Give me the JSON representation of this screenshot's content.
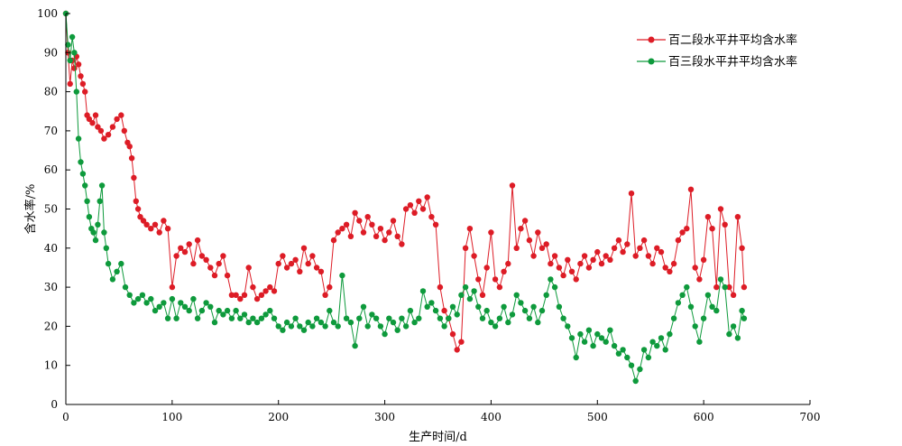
{
  "chart_data": {
    "type": "line",
    "title": "",
    "xlabel": "生产时间/d",
    "ylabel": "含水率/%",
    "xlim": [
      0,
      700
    ],
    "ylim": [
      0,
      100
    ],
    "xticks": [
      0,
      100,
      200,
      300,
      400,
      500,
      600,
      700
    ],
    "yticks": [
      0,
      10,
      20,
      30,
      40,
      50,
      60,
      70,
      80,
      90,
      100
    ],
    "grid": false,
    "legend_position": "top-right",
    "series": [
      {
        "name": "百二段水平井平均含水率",
        "color": "#dd1c26",
        "x": [
          0,
          2,
          4,
          6,
          8,
          10,
          12,
          14,
          16,
          18,
          20,
          22,
          25,
          28,
          30,
          33,
          36,
          40,
          44,
          48,
          52,
          55,
          58,
          60,
          62,
          64,
          66,
          68,
          70,
          73,
          76,
          80,
          84,
          88,
          92,
          96,
          100,
          104,
          108,
          112,
          116,
          120,
          124,
          128,
          132,
          136,
          140,
          144,
          148,
          152,
          156,
          160,
          164,
          168,
          172,
          176,
          180,
          184,
          188,
          192,
          196,
          200,
          204,
          208,
          212,
          216,
          220,
          224,
          228,
          232,
          236,
          240,
          244,
          248,
          252,
          256,
          260,
          264,
          268,
          272,
          276,
          280,
          284,
          288,
          292,
          296,
          300,
          304,
          308,
          312,
          316,
          320,
          324,
          328,
          332,
          336,
          340,
          344,
          348,
          352,
          356,
          360,
          364,
          368,
          372,
          376,
          380,
          384,
          388,
          392,
          396,
          400,
          404,
          408,
          412,
          416,
          420,
          424,
          428,
          432,
          436,
          440,
          444,
          448,
          452,
          456,
          460,
          464,
          468,
          472,
          476,
          480,
          484,
          488,
          492,
          496,
          500,
          504,
          508,
          512,
          516,
          520,
          524,
          528,
          532,
          536,
          540,
          544,
          548,
          552,
          556,
          560,
          564,
          568,
          572,
          576,
          580,
          584,
          588,
          592,
          596,
          600,
          604,
          608,
          612,
          616,
          620,
          624,
          628,
          632,
          636,
          638
        ],
        "values": [
          100,
          90,
          82,
          88,
          86,
          89,
          87,
          84,
          82,
          80,
          74,
          73,
          72,
          74,
          71,
          70,
          68,
          69,
          71,
          73,
          74,
          70,
          67,
          66,
          63,
          58,
          52,
          50,
          48,
          47,
          46,
          45,
          46,
          44,
          47,
          45,
          30,
          38,
          40,
          39,
          41,
          36,
          42,
          38,
          37,
          35,
          33,
          36,
          38,
          33,
          28,
          28,
          27,
          28,
          35,
          30,
          27,
          28,
          29,
          30,
          29,
          36,
          38,
          35,
          36,
          37,
          34,
          40,
          36,
          38,
          35,
          34,
          28,
          30,
          42,
          44,
          45,
          46,
          43,
          49,
          47,
          44,
          48,
          46,
          43,
          45,
          42,
          44,
          47,
          43,
          41,
          50,
          51,
          49,
          52,
          50,
          53,
          48,
          46,
          30,
          24,
          22,
          18,
          14,
          16,
          40,
          45,
          38,
          32,
          28,
          35,
          44,
          32,
          30,
          34,
          36,
          56,
          40,
          45,
          47,
          42,
          38,
          44,
          40,
          41,
          36,
          38,
          35,
          33,
          37,
          34,
          32,
          36,
          38,
          35,
          37,
          39,
          36,
          38,
          37,
          40,
          42,
          39,
          41,
          54,
          38,
          40,
          42,
          38,
          36,
          40,
          39,
          35,
          34,
          36,
          42,
          44,
          45,
          55,
          35,
          32,
          37,
          48,
          45,
          30,
          50,
          46,
          30,
          28,
          48,
          40,
          30
        ]
      },
      {
        "name": "百三段水平井平均含水率",
        "color": "#0e9a3c",
        "x": [
          0,
          2,
          4,
          6,
          8,
          10,
          12,
          14,
          16,
          18,
          20,
          22,
          24,
          26,
          28,
          30,
          32,
          34,
          36,
          38,
          40,
          44,
          48,
          52,
          56,
          60,
          64,
          68,
          72,
          76,
          80,
          84,
          88,
          92,
          96,
          100,
          104,
          108,
          112,
          116,
          120,
          124,
          128,
          132,
          136,
          140,
          144,
          148,
          152,
          156,
          160,
          164,
          168,
          172,
          176,
          180,
          184,
          188,
          192,
          196,
          200,
          204,
          208,
          212,
          216,
          220,
          224,
          228,
          232,
          236,
          240,
          244,
          248,
          252,
          256,
          260,
          264,
          268,
          272,
          276,
          280,
          284,
          288,
          292,
          296,
          300,
          304,
          308,
          312,
          316,
          320,
          324,
          328,
          332,
          336,
          340,
          344,
          348,
          352,
          356,
          360,
          364,
          368,
          372,
          376,
          380,
          384,
          388,
          392,
          396,
          400,
          404,
          408,
          412,
          416,
          420,
          424,
          428,
          432,
          436,
          440,
          444,
          448,
          452,
          456,
          460,
          464,
          468,
          472,
          476,
          480,
          484,
          488,
          492,
          496,
          500,
          504,
          508,
          512,
          516,
          520,
          524,
          528,
          532,
          536,
          540,
          544,
          548,
          552,
          556,
          560,
          564,
          568,
          572,
          576,
          580,
          584,
          588,
          592,
          596,
          600,
          604,
          608,
          612,
          616,
          620,
          624,
          628,
          632,
          636,
          638
        ],
        "values": [
          100,
          92,
          88,
          94,
          90,
          80,
          68,
          62,
          59,
          56,
          52,
          48,
          45,
          44,
          42,
          46,
          52,
          56,
          44,
          40,
          36,
          32,
          34,
          36,
          30,
          28,
          26,
          27,
          28,
          26,
          27,
          24,
          25,
          26,
          22,
          27,
          22,
          26,
          25,
          24,
          27,
          22,
          24,
          26,
          25,
          21,
          24,
          23,
          24,
          22,
          24,
          22,
          23,
          21,
          22,
          21,
          22,
          23,
          24,
          22,
          20,
          19,
          21,
          20,
          22,
          20,
          19,
          21,
          20,
          22,
          21,
          20,
          24,
          21,
          20,
          33,
          22,
          21,
          15,
          22,
          25,
          20,
          23,
          22,
          20,
          18,
          22,
          21,
          19,
          22,
          20,
          24,
          21,
          22,
          29,
          25,
          26,
          24,
          22,
          20,
          22,
          25,
          23,
          28,
          30,
          27,
          29,
          25,
          22,
          24,
          21,
          20,
          22,
          25,
          21,
          23,
          28,
          26,
          24,
          22,
          25,
          21,
          24,
          28,
          32,
          30,
          25,
          22,
          20,
          17,
          12,
          18,
          16,
          19,
          15,
          18,
          17,
          16,
          19,
          15,
          13,
          14,
          12,
          10,
          6,
          9,
          14,
          12,
          16,
          15,
          17,
          14,
          18,
          22,
          26,
          28,
          30,
          25,
          20,
          16,
          22,
          28,
          25,
          24,
          32,
          30,
          18,
          20,
          17,
          24,
          22
        ]
      }
    ]
  }
}
